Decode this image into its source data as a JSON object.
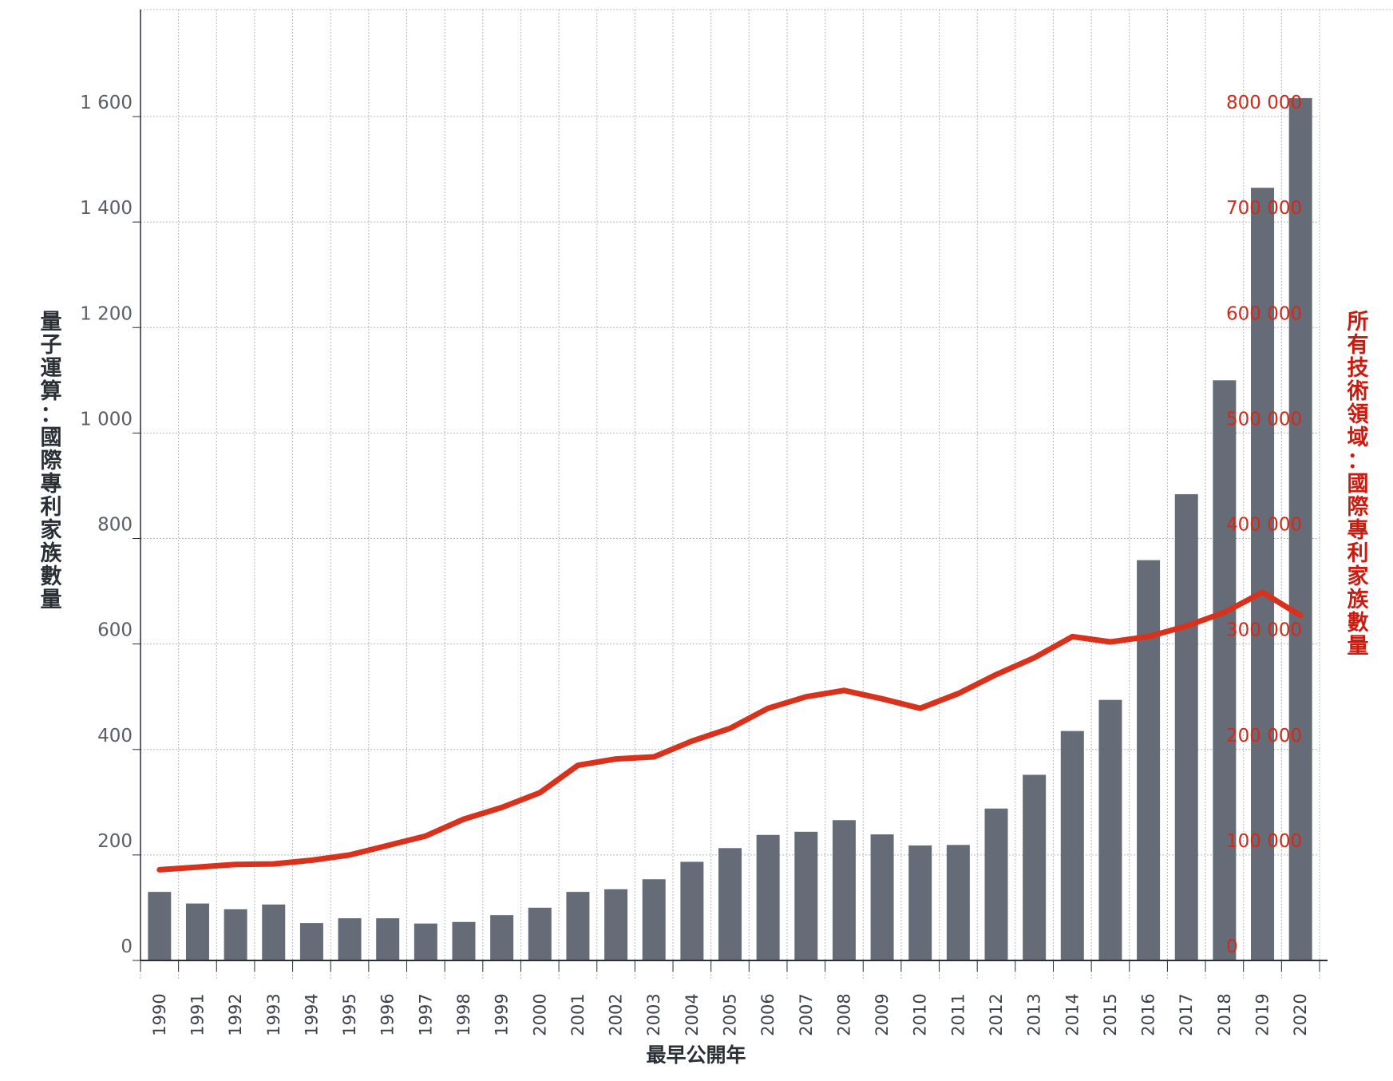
{
  "chart_data": {
    "type": "bar",
    "xlabel": "最早公開年",
    "ylabel": "量子運算：國際專利家族數量",
    "y2label": "所有技術領域：國際專利家族數量",
    "categories": [
      "1990",
      "1991",
      "1992",
      "1993",
      "1994",
      "1995",
      "1996",
      "1997",
      "1998",
      "1999",
      "2000",
      "2001",
      "2002",
      "2003",
      "2004",
      "2005",
      "2006",
      "2007",
      "2008",
      "2009",
      "2010",
      "2011",
      "2012",
      "2013",
      "2014",
      "2015",
      "2016",
      "2017",
      "2018",
      "2019",
      "2020"
    ],
    "ylim": [
      0,
      1600
    ],
    "y_ticks": [
      0,
      200,
      400,
      600,
      800,
      1000,
      1200,
      1400,
      1600
    ],
    "y_tick_labels": [
      "0",
      "200",
      "400",
      "600",
      "800",
      "1 000",
      "1 200",
      "1 400",
      "1 600"
    ],
    "y2lim": [
      0,
      800000
    ],
    "y2_ticks": [
      0,
      100000,
      200000,
      300000,
      400000,
      500000,
      600000,
      700000,
      800000
    ],
    "y2_tick_labels": [
      "0",
      "100 000",
      "200 000",
      "300 000",
      "400 000",
      "500 000",
      "600 000",
      "700 000",
      "800 000"
    ],
    "grid": true,
    "colors": {
      "bars": "#666c77",
      "line": "#d8321c",
      "right_axis": "#d12a1a",
      "grid": "#b4b8be"
    },
    "series": [
      {
        "type": "bar",
        "axis": "left",
        "values": [
          130,
          108,
          97,
          106,
          71,
          80,
          80,
          70,
          73,
          86,
          100,
          130,
          135,
          154,
          187,
          213,
          238,
          244,
          266,
          239,
          218,
          219,
          288,
          352,
          435,
          494,
          759,
          884,
          1100,
          1465,
          1635
        ]
      },
      {
        "type": "line",
        "axis": "right",
        "values": [
          86000,
          88500,
          91000,
          91500,
          95000,
          100000,
          109000,
          118000,
          134000,
          145000,
          159000,
          185000,
          191000,
          193000,
          208000,
          220000,
          239000,
          250000,
          256000,
          248000,
          239000,
          253000,
          271000,
          287000,
          307000,
          302000,
          307000,
          317000,
          330000,
          349000,
          327000
        ]
      }
    ]
  }
}
